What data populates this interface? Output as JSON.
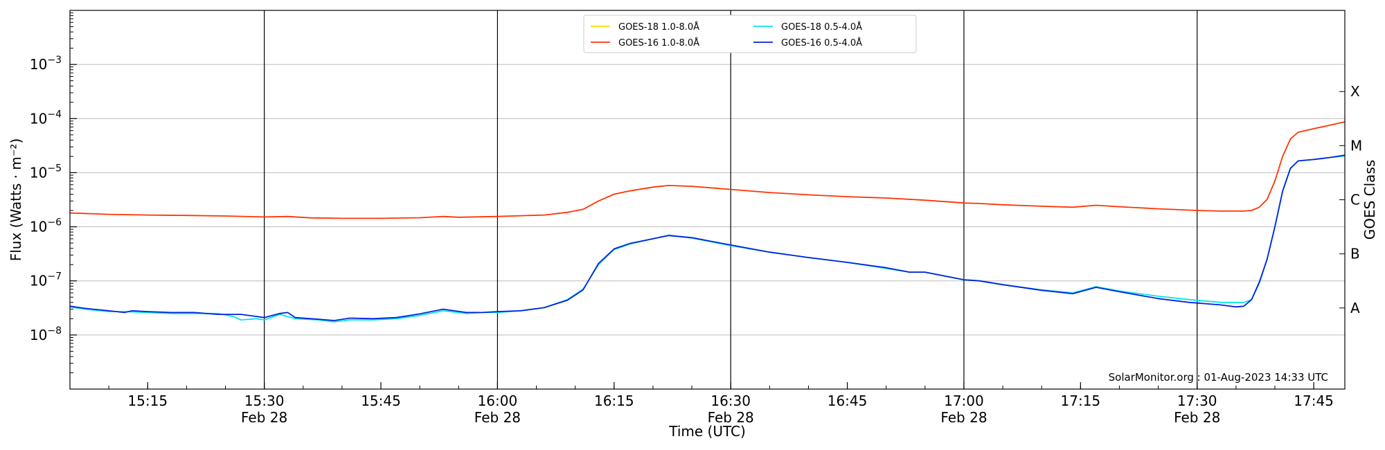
{
  "chart_data": {
    "type": "line",
    "xlabel": "Time (UTC)",
    "ylabel": "Flux (Watts · m⁻²)",
    "ylabel_right": "GOES Class",
    "yscale": "log",
    "ylim": [
      1e-09,
      0.01
    ],
    "xlim": [
      "15:05",
      "17:49"
    ],
    "grid": "horizontal",
    "legend_position": "top-center",
    "credit": "SolarMonitor.org : 01-Aug-2023 14:33 UTC",
    "x_ticks": [
      {
        "time": "15:15",
        "label": "15:15",
        "date": ""
      },
      {
        "time": "15:30",
        "label": "15:30",
        "date": "Feb 28"
      },
      {
        "time": "15:45",
        "label": "15:45",
        "date": ""
      },
      {
        "time": "16:00",
        "label": "16:00",
        "date": "Feb 28"
      },
      {
        "time": "16:15",
        "label": "16:15",
        "date": ""
      },
      {
        "time": "16:30",
        "label": "16:30",
        "date": "Feb 28"
      },
      {
        "time": "16:45",
        "label": "16:45",
        "date": ""
      },
      {
        "time": "17:00",
        "label": "17:00",
        "date": "Feb 28"
      },
      {
        "time": "17:15",
        "label": "17:15",
        "date": ""
      },
      {
        "time": "17:30",
        "label": "17:30",
        "date": "Feb 28"
      },
      {
        "time": "17:45",
        "label": "17:45",
        "date": ""
      }
    ],
    "y_ticks": [
      {
        "value": 1e-08,
        "base": "10",
        "exp": "−8"
      },
      {
        "value": 1e-07,
        "base": "10",
        "exp": "−7"
      },
      {
        "value": 1e-06,
        "base": "10",
        "exp": "−6"
      },
      {
        "value": 1e-05,
        "base": "10",
        "exp": "−5"
      },
      {
        "value": 0.0001,
        "base": "10",
        "exp": "−4"
      },
      {
        "value": 0.001,
        "base": "10",
        "exp": "−3"
      }
    ],
    "goes_classes": [
      {
        "label": "A",
        "value": 3.16e-08
      },
      {
        "label": "B",
        "value": 3.16e-07
      },
      {
        "label": "C",
        "value": 3.16e-06
      },
      {
        "label": "M",
        "value": 3.16e-05
      },
      {
        "label": "X",
        "value": 0.000316
      }
    ],
    "vlines": [
      "15:30",
      "16:00",
      "16:30",
      "17:00",
      "17:30"
    ],
    "series": [
      {
        "name": "GOES-18 1.0-8.0Å",
        "color": "#ffd700",
        "points": []
      },
      {
        "name": "GOES-18 0.5-4.0Å",
        "color": "#00e5ee",
        "points": [
          [
            "15:05",
            3.3e-08
          ],
          [
            "15:07",
            3e-08
          ],
          [
            "15:10",
            2.7e-08
          ],
          [
            "15:12",
            2.7e-08
          ],
          [
            "15:15",
            2.6e-08
          ],
          [
            "15:18",
            2.5e-08
          ],
          [
            "15:21",
            2.5e-08
          ],
          [
            "15:24",
            2.5e-08
          ],
          [
            "15:26",
            2.2e-08
          ],
          [
            "15:27",
            1.9e-08
          ],
          [
            "15:29",
            2e-08
          ],
          [
            "15:30",
            1.9e-08
          ],
          [
            "15:32",
            2.4e-08
          ],
          [
            "15:34",
            2e-08
          ],
          [
            "15:37",
            1.9e-08
          ],
          [
            "15:39",
            1.75e-08
          ],
          [
            "15:41",
            1.9e-08
          ],
          [
            "15:44",
            1.9e-08
          ],
          [
            "15:47",
            2e-08
          ],
          [
            "15:50",
            2.3e-08
          ],
          [
            "15:53",
            2.8e-08
          ],
          [
            "15:56",
            2.5e-08
          ],
          [
            "15:58",
            2.6e-08
          ],
          [
            "16:00",
            2.6e-08
          ],
          [
            "16:03",
            2.8e-08
          ],
          [
            "16:06",
            3.2e-08
          ],
          [
            "16:09",
            4.5e-08
          ],
          [
            "16:11",
            7e-08
          ],
          [
            "16:13",
            2e-07
          ],
          [
            "16:15",
            3.8e-07
          ],
          [
            "16:17",
            4.8e-07
          ],
          [
            "16:20",
            6e-07
          ],
          [
            "16:22",
            7e-07
          ],
          [
            "16:25",
            6.2e-07
          ],
          [
            "16:30",
            4.5e-07
          ],
          [
            "16:35",
            3.4e-07
          ],
          [
            "16:40",
            2.7e-07
          ],
          [
            "16:45",
            2.2e-07
          ],
          [
            "16:50",
            1.7e-07
          ],
          [
            "16:53",
            1.45e-07
          ],
          [
            "16:55",
            1.45e-07
          ],
          [
            "17:00",
            1.05e-07
          ],
          [
            "17:02",
            1e-07
          ],
          [
            "17:05",
            8.5e-08
          ],
          [
            "17:10",
            6.8e-08
          ],
          [
            "17:14",
            6e-08
          ],
          [
            "17:17",
            7.8e-08
          ],
          [
            "17:20",
            6.5e-08
          ],
          [
            "17:25",
            5.2e-08
          ],
          [
            "17:29",
            4.5e-08
          ],
          [
            "17:33",
            4e-08
          ],
          [
            "17:36",
            4e-08
          ],
          [
            "17:37",
            4.5e-08
          ],
          [
            "17:38",
            9e-08
          ],
          [
            "17:39",
            2.5e-07
          ],
          [
            "17:40",
            1e-06
          ],
          [
            "17:41",
            4.5e-06
          ],
          [
            "17:42",
            1.2e-05
          ],
          [
            "17:43",
            1.65e-05
          ],
          [
            "17:45",
            1.75e-05
          ],
          [
            "17:47",
            1.9e-05
          ],
          [
            "17:49",
            2.05e-05
          ]
        ]
      },
      {
        "name": "GOES-16 1.0-8.0Å",
        "color": "#ff3300",
        "points": [
          [
            "15:05",
            1.8e-06
          ],
          [
            "15:10",
            1.7e-06
          ],
          [
            "15:15",
            1.65e-06
          ],
          [
            "15:20",
            1.62e-06
          ],
          [
            "15:25",
            1.58e-06
          ],
          [
            "15:30",
            1.52e-06
          ],
          [
            "15:33",
            1.55e-06
          ],
          [
            "15:36",
            1.46e-06
          ],
          [
            "15:40",
            1.43e-06
          ],
          [
            "15:45",
            1.43e-06
          ],
          [
            "15:50",
            1.47e-06
          ],
          [
            "15:53",
            1.55e-06
          ],
          [
            "15:55",
            1.5e-06
          ],
          [
            "16:00",
            1.55e-06
          ],
          [
            "16:03",
            1.6e-06
          ],
          [
            "16:06",
            1.65e-06
          ],
          [
            "16:09",
            1.85e-06
          ],
          [
            "16:11",
            2.1e-06
          ],
          [
            "16:13",
            3e-06
          ],
          [
            "16:15",
            4e-06
          ],
          [
            "16:17",
            4.6e-06
          ],
          [
            "16:20",
            5.4e-06
          ],
          [
            "16:22",
            5.8e-06
          ],
          [
            "16:25",
            5.6e-06
          ],
          [
            "16:30",
            4.9e-06
          ],
          [
            "16:35",
            4.3e-06
          ],
          [
            "16:40",
            3.9e-06
          ],
          [
            "16:45",
            3.6e-06
          ],
          [
            "16:50",
            3.4e-06
          ],
          [
            "16:55",
            3.1e-06
          ],
          [
            "17:00",
            2.75e-06
          ],
          [
            "17:02",
            2.7e-06
          ],
          [
            "17:05",
            2.55e-06
          ],
          [
            "17:10",
            2.4e-06
          ],
          [
            "17:14",
            2.3e-06
          ],
          [
            "17:17",
            2.5e-06
          ],
          [
            "17:20",
            2.35e-06
          ],
          [
            "17:25",
            2.15e-06
          ],
          [
            "17:30",
            2e-06
          ],
          [
            "17:33",
            1.95e-06
          ],
          [
            "17:36",
            1.95e-06
          ],
          [
            "17:37",
            2e-06
          ],
          [
            "17:38",
            2.3e-06
          ],
          [
            "17:39",
            3.2e-06
          ],
          [
            "17:40",
            7e-06
          ],
          [
            "17:41",
            2e-05
          ],
          [
            "17:42",
            4.2e-05
          ],
          [
            "17:43",
            5.6e-05
          ],
          [
            "17:45",
            6.5e-05
          ],
          [
            "17:47",
            7.5e-05
          ],
          [
            "17:49",
            8.7e-05
          ]
        ]
      },
      {
        "name": "GOES-16 0.5-4.0Å",
        "color": "#0022dd",
        "points": [
          [
            "15:05",
            3.4e-08
          ],
          [
            "15:07",
            3.1e-08
          ],
          [
            "15:10",
            2.8e-08
          ],
          [
            "15:12",
            2.6e-08
          ],
          [
            "15:13",
            2.8e-08
          ],
          [
            "15:15",
            2.7e-08
          ],
          [
            "15:18",
            2.6e-08
          ],
          [
            "15:21",
            2.6e-08
          ],
          [
            "15:24",
            2.4e-08
          ],
          [
            "15:26",
            2.4e-08
          ],
          [
            "15:27",
            2.4e-08
          ],
          [
            "15:29",
            2.2e-08
          ],
          [
            "15:30",
            2.1e-08
          ],
          [
            "15:32",
            2.5e-08
          ],
          [
            "15:33",
            2.6e-08
          ],
          [
            "15:34",
            2.1e-08
          ],
          [
            "15:37",
            1.95e-08
          ],
          [
            "15:39",
            1.85e-08
          ],
          [
            "15:41",
            2.05e-08
          ],
          [
            "15:44",
            2e-08
          ],
          [
            "15:47",
            2.1e-08
          ],
          [
            "15:50",
            2.45e-08
          ],
          [
            "15:53",
            3e-08
          ],
          [
            "15:56",
            2.6e-08
          ],
          [
            "15:58",
            2.6e-08
          ],
          [
            "16:00",
            2.7e-08
          ],
          [
            "16:03",
            2.8e-08
          ],
          [
            "16:06",
            3.2e-08
          ],
          [
            "16:09",
            4.4e-08
          ],
          [
            "16:11",
            6.8e-08
          ],
          [
            "16:13",
            2.1e-07
          ],
          [
            "16:15",
            3.9e-07
          ],
          [
            "16:17",
            4.9e-07
          ],
          [
            "16:20",
            6e-07
          ],
          [
            "16:22",
            6.9e-07
          ],
          [
            "16:25",
            6.3e-07
          ],
          [
            "16:30",
            4.6e-07
          ],
          [
            "16:35",
            3.4e-07
          ],
          [
            "16:40",
            2.7e-07
          ],
          [
            "16:45",
            2.2e-07
          ],
          [
            "16:50",
            1.75e-07
          ],
          [
            "16:53",
            1.45e-07
          ],
          [
            "16:55",
            1.45e-07
          ],
          [
            "17:00",
            1.05e-07
          ],
          [
            "17:02",
            1e-07
          ],
          [
            "17:05",
            8.5e-08
          ],
          [
            "17:10",
            6.7e-08
          ],
          [
            "17:14",
            5.8e-08
          ],
          [
            "17:17",
            7.6e-08
          ],
          [
            "17:20",
            6.3e-08
          ],
          [
            "17:25",
            4.7e-08
          ],
          [
            "17:29",
            4e-08
          ],
          [
            "17:33",
            3.6e-08
          ],
          [
            "17:35",
            3.3e-08
          ],
          [
            "17:36",
            3.4e-08
          ],
          [
            "17:37",
            4.5e-08
          ],
          [
            "17:38",
            9.5e-08
          ],
          [
            "17:39",
            2.5e-07
          ],
          [
            "17:40",
            1e-06
          ],
          [
            "17:41",
            4.6e-06
          ],
          [
            "17:42",
            1.2e-05
          ],
          [
            "17:43",
            1.65e-05
          ],
          [
            "17:45",
            1.75e-05
          ],
          [
            "17:47",
            1.9e-05
          ],
          [
            "17:49",
            2.1e-05
          ]
        ]
      }
    ]
  }
}
